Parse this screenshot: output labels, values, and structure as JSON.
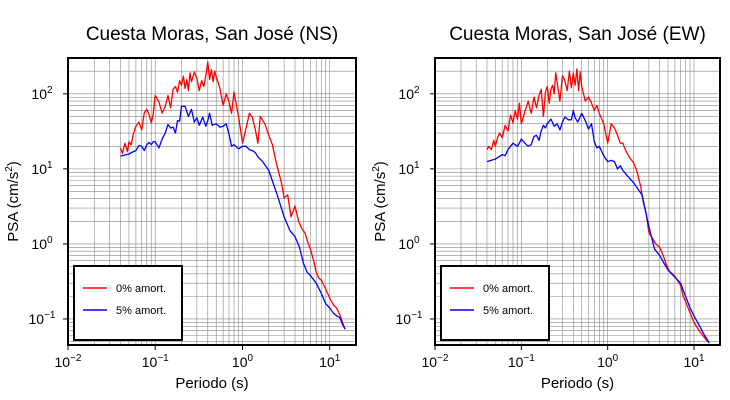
{
  "figure": {
    "background": "#ffffff",
    "line_colors": {
      "amort0": "#ff0000",
      "amort5": "#0000ff"
    }
  },
  "chart_data": [
    {
      "type": "line",
      "title": "Cuesta Moras, San José (NS)",
      "xlabel": "Periodo (s)",
      "ylabel": "PSA (cm/s²)",
      "xscale": "log",
      "yscale": "log",
      "xlim": [
        0.01,
        20
      ],
      "ylim": [
        0.045,
        300
      ],
      "grid": true,
      "x_ticks": [
        {
          "value": 0.01,
          "base": "10",
          "exp": "−2"
        },
        {
          "value": 0.1,
          "base": "10",
          "exp": "−1"
        },
        {
          "value": 1,
          "base": "10",
          "exp": "0"
        },
        {
          "value": 10,
          "base": "10",
          "exp": "1"
        }
      ],
      "y_ticks": [
        {
          "value": 0.1,
          "base": "10",
          "exp": "−1"
        },
        {
          "value": 1,
          "base": "10",
          "exp": "0"
        },
        {
          "value": 10,
          "base": "10",
          "exp": "1"
        },
        {
          "value": 100,
          "base": "10",
          "exp": "2"
        }
      ],
      "legend_position": "bottom-left",
      "series": [
        {
          "name": "0% amort.",
          "color": "#ff0000",
          "x": [
            0.04,
            0.042,
            0.045,
            0.048,
            0.05,
            0.053,
            0.056,
            0.06,
            0.065,
            0.07,
            0.075,
            0.08,
            0.085,
            0.09,
            0.095,
            0.1,
            0.11,
            0.12,
            0.13,
            0.14,
            0.15,
            0.16,
            0.17,
            0.18,
            0.19,
            0.2,
            0.21,
            0.22,
            0.23,
            0.24,
            0.25,
            0.26,
            0.28,
            0.3,
            0.32,
            0.34,
            0.36,
            0.38,
            0.4,
            0.42,
            0.44,
            0.46,
            0.48,
            0.5,
            0.55,
            0.6,
            0.65,
            0.7,
            0.75,
            0.8,
            0.9,
            1.0,
            1.1,
            1.2,
            1.3,
            1.4,
            1.5,
            1.6,
            1.8,
            2.0,
            2.2,
            2.4,
            2.6,
            2.8,
            3.0,
            3.3,
            3.6,
            4.0,
            4.4,
            4.8,
            5.2,
            5.6,
            6.0,
            6.5,
            7.0,
            7.5,
            8.0,
            9.0,
            10.0,
            11.0,
            12.0,
            13.0,
            14.0,
            15.0
          ],
          "y": [
            19,
            16,
            22,
            17,
            23,
            21,
            29,
            37,
            42,
            33,
            56,
            62,
            53,
            41,
            55,
            95,
            78,
            55,
            68,
            95,
            65,
            115,
            125,
            105,
            150,
            130,
            172,
            118,
            155,
            110,
            190,
            145,
            195,
            160,
            110,
            150,
            125,
            175,
            265,
            155,
            210,
            145,
            200,
            170,
            120,
            70,
            100,
            78,
            55,
            105,
            50,
            22,
            35,
            55,
            48,
            34,
            22,
            50,
            40,
            28,
            21,
            13,
            9,
            6.5,
            4.1,
            4.5,
            2.3,
            3.2,
            2.0,
            1.6,
            1.4,
            1.05,
            0.85,
            0.62,
            0.42,
            0.35,
            0.33,
            0.25,
            0.19,
            0.155,
            0.14,
            0.115,
            0.09,
            0.073
          ]
        },
        {
          "name": "5% amort.",
          "color": "#0000ff",
          "x": [
            0.04,
            0.045,
            0.05,
            0.055,
            0.06,
            0.065,
            0.07,
            0.075,
            0.08,
            0.085,
            0.09,
            0.095,
            0.1,
            0.11,
            0.12,
            0.13,
            0.14,
            0.15,
            0.16,
            0.17,
            0.18,
            0.19,
            0.2,
            0.22,
            0.24,
            0.26,
            0.28,
            0.3,
            0.32,
            0.35,
            0.38,
            0.4,
            0.42,
            0.45,
            0.5,
            0.55,
            0.6,
            0.65,
            0.7,
            0.75,
            0.8,
            0.9,
            1.0,
            1.1,
            1.2,
            1.3,
            1.4,
            1.5,
            1.7,
            2.0,
            2.5,
            3.0,
            3.5,
            4.0,
            4.5,
            5.0,
            5.5,
            6.0,
            7.0,
            8.0,
            9.0,
            10.0,
            11.0,
            12.0,
            13.0,
            14.0,
            15.0
          ],
          "y": [
            14.8,
            15.3,
            15.8,
            16.8,
            17.5,
            20.5,
            20,
            17.5,
            21,
            22.5,
            21,
            23,
            23,
            19,
            25,
            30,
            39,
            35,
            36,
            30,
            44,
            43,
            68,
            68,
            50,
            62,
            42,
            48,
            38,
            49,
            37,
            44,
            55,
            38,
            40,
            36,
            37,
            40,
            29,
            20,
            21,
            18.5,
            20,
            20,
            18,
            17.5,
            16.5,
            14.5,
            12.5,
            9.5,
            4.5,
            2.3,
            1.5,
            1.25,
            0.9,
            0.55,
            0.42,
            0.38,
            0.3,
            0.22,
            0.16,
            0.14,
            0.12,
            0.11,
            0.105,
            0.085,
            0.073
          ]
        }
      ]
    },
    {
      "type": "line",
      "title": "Cuesta Moras, San José (EW)",
      "xlabel": "Periodo (s)",
      "ylabel": "PSA (cm/s²)",
      "xscale": "log",
      "yscale": "log",
      "xlim": [
        0.01,
        20
      ],
      "ylim": [
        0.045,
        300
      ],
      "grid": true,
      "x_ticks": [
        {
          "value": 0.01,
          "base": "10",
          "exp": "−2"
        },
        {
          "value": 0.1,
          "base": "10",
          "exp": "−1"
        },
        {
          "value": 1,
          "base": "10",
          "exp": "0"
        },
        {
          "value": 10,
          "base": "10",
          "exp": "1"
        }
      ],
      "y_ticks": [
        {
          "value": 0.1,
          "base": "10",
          "exp": "−1"
        },
        {
          "value": 1,
          "base": "10",
          "exp": "0"
        },
        {
          "value": 10,
          "base": "10",
          "exp": "1"
        },
        {
          "value": 100,
          "base": "10",
          "exp": "2"
        }
      ],
      "legend_position": "bottom-left",
      "series": [
        {
          "name": "0% amort.",
          "color": "#ff0000",
          "x": [
            0.04,
            0.042,
            0.045,
            0.048,
            0.05,
            0.053,
            0.056,
            0.06,
            0.065,
            0.07,
            0.075,
            0.08,
            0.085,
            0.09,
            0.095,
            0.1,
            0.11,
            0.12,
            0.13,
            0.14,
            0.15,
            0.16,
            0.17,
            0.18,
            0.19,
            0.2,
            0.21,
            0.22,
            0.23,
            0.24,
            0.25,
            0.26,
            0.28,
            0.3,
            0.32,
            0.34,
            0.36,
            0.38,
            0.4,
            0.42,
            0.44,
            0.46,
            0.48,
            0.5,
            0.55,
            0.6,
            0.65,
            0.7,
            0.75,
            0.8,
            0.9,
            1.0,
            1.1,
            1.2,
            1.3,
            1.4,
            1.5,
            1.6,
            1.8,
            2.0,
            2.2,
            2.4,
            2.6,
            2.8,
            3.0,
            3.3,
            3.6,
            4.0,
            4.4,
            4.8,
            5.2,
            5.6,
            6.0,
            6.5,
            7.0,
            7.5,
            8.0,
            9.0,
            10.0,
            11.0,
            12.0,
            13.0,
            14.0,
            15.0
          ],
          "y": [
            18,
            20,
            18,
            24,
            20,
            26,
            30,
            26,
            38,
            32,
            52,
            41,
            60,
            46,
            75,
            40,
            58,
            80,
            55,
            90,
            65,
            95,
            115,
            50,
            105,
            125,
            75,
            115,
            130,
            100,
            190,
            140,
            80,
            175,
            150,
            110,
            200,
            120,
            190,
            130,
            215,
            110,
            195,
            125,
            80,
            90,
            75,
            60,
            70,
            55,
            40,
            22,
            40,
            35,
            28,
            22,
            22,
            18,
            14,
            12,
            9,
            6,
            3.5,
            2.5,
            1.4,
            1.2,
            1.0,
            0.9,
            0.7,
            0.52,
            0.43,
            0.4,
            0.37,
            0.32,
            0.28,
            0.2,
            0.17,
            0.12,
            0.09,
            0.075,
            0.065,
            0.058,
            0.052,
            0.048
          ]
        },
        {
          "name": "5% amort.",
          "color": "#0000ff",
          "x": [
            0.04,
            0.045,
            0.05,
            0.055,
            0.06,
            0.065,
            0.07,
            0.075,
            0.08,
            0.085,
            0.09,
            0.095,
            0.1,
            0.11,
            0.12,
            0.13,
            0.14,
            0.15,
            0.16,
            0.17,
            0.18,
            0.19,
            0.2,
            0.22,
            0.24,
            0.26,
            0.28,
            0.3,
            0.32,
            0.35,
            0.38,
            0.4,
            0.42,
            0.45,
            0.5,
            0.55,
            0.6,
            0.65,
            0.7,
            0.75,
            0.8,
            0.9,
            1.0,
            1.1,
            1.2,
            1.3,
            1.4,
            1.5,
            1.7,
            2.0,
            2.5,
            3.0,
            3.5,
            4.0,
            4.5,
            5.0,
            5.5,
            6.0,
            7.0,
            8.0,
            9.0,
            10.0,
            11.0,
            12.0,
            13.0,
            14.0,
            15.0
          ],
          "y": [
            12.5,
            13,
            13.5,
            14.5,
            15.5,
            15,
            18,
            20,
            22,
            21,
            20,
            22,
            25,
            22,
            20,
            21,
            27,
            28,
            24,
            32,
            38,
            35,
            40,
            46,
            37,
            40,
            33,
            42,
            49,
            45,
            45,
            60,
            48,
            42,
            55,
            44,
            34,
            40,
            23,
            19,
            20,
            15,
            12.5,
            13,
            12.5,
            10,
            11,
            9.5,
            8,
            6.5,
            4.5,
            1.7,
            0.85,
            0.7,
            0.55,
            0.45,
            0.4,
            0.36,
            0.3,
            0.2,
            0.14,
            0.11,
            0.09,
            0.075,
            0.063,
            0.055,
            0.048
          ]
        }
      ]
    }
  ]
}
